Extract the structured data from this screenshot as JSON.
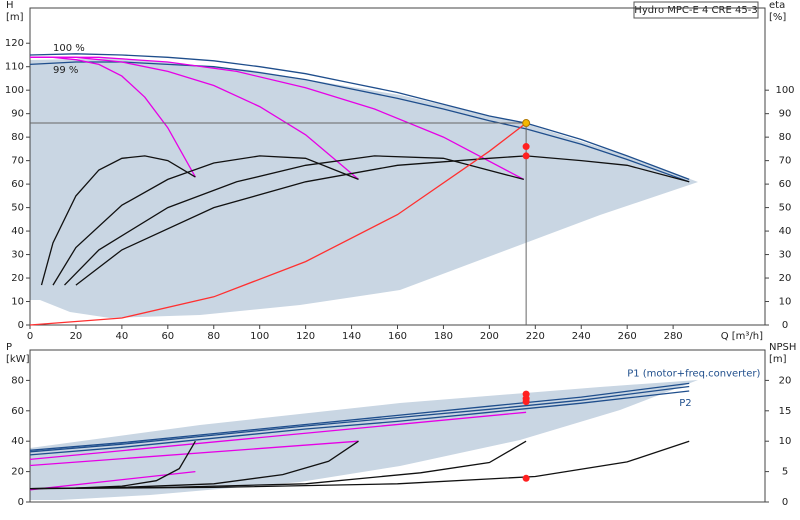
{
  "chart_data": [
    {
      "type": "line",
      "title": "Hydro MPC-E 4 CRE 45-3",
      "ylabel": [
        "H",
        "[m]"
      ],
      "y2label": [
        "eta",
        "[%]"
      ],
      "xlabel": "Q [m³/h]",
      "annotations": [
        "100 %",
        "99 %"
      ],
      "xlim": [
        0,
        320
      ],
      "xticks": [
        0,
        20,
        40,
        60,
        80,
        100,
        120,
        140,
        160,
        180,
        200,
        220,
        240,
        260,
        280
      ],
      "ylim": [
        0,
        135
      ],
      "yticks": [
        0,
        10,
        20,
        30,
        40,
        50,
        60,
        70,
        80,
        90,
        100,
        110,
        120
      ],
      "y2lim": [
        0,
        135
      ],
      "y2ticks": [
        0,
        10,
        20,
        30,
        40,
        50,
        60,
        70,
        80,
        90,
        100
      ],
      "series": [
        {
          "color": "#1f4e8c",
          "x": [
            0,
            20,
            40,
            60,
            80,
            100,
            120,
            140,
            160,
            180,
            200,
            216,
            240,
            260,
            287
          ],
          "values": [
            115,
            115.5,
            115,
            114,
            112.5,
            110,
            107,
            103,
            99,
            94,
            89,
            86,
            79,
            72,
            62
          ]
        },
        {
          "color": "#1f4e8c",
          "x": [
            0,
            20,
            40,
            60,
            80,
            100,
            120,
            140,
            160,
            180,
            200,
            216,
            240,
            260,
            287
          ],
          "values": [
            111,
            112,
            112,
            111,
            110,
            107.5,
            104.5,
            100.5,
            96.5,
            92,
            87,
            83.5,
            77,
            70.5,
            61
          ]
        },
        {
          "color": "#e600e6",
          "x": [
            0,
            10,
            20,
            30,
            40,
            50,
            60,
            72
          ],
          "values": [
            114,
            114,
            113,
            111,
            106,
            97,
            84,
            63
          ]
        },
        {
          "color": "#e600e6",
          "x": [
            0,
            20,
            40,
            60,
            80,
            100,
            120,
            143
          ],
          "values": [
            114,
            114,
            112,
            108,
            102,
            93,
            81,
            62
          ]
        },
        {
          "color": "#e600e6",
          "x": [
            0,
            30,
            60,
            90,
            120,
            150,
            180,
            215
          ],
          "values": [
            114,
            114,
            112,
            108,
            101,
            92,
            80,
            62
          ]
        },
        {
          "color": "#111111",
          "axis": "y2",
          "x": [
            5,
            10,
            20,
            30,
            40,
            50,
            60,
            72
          ],
          "values": [
            17,
            35,
            55,
            66,
            71,
            72,
            70,
            63
          ]
        },
        {
          "color": "#111111",
          "axis": "y2",
          "x": [
            10,
            20,
            40,
            60,
            80,
            100,
            120,
            143
          ],
          "values": [
            17,
            33,
            51,
            62,
            69,
            72,
            71,
            62
          ]
        },
        {
          "color": "#111111",
          "axis": "y2",
          "x": [
            15,
            30,
            60,
            90,
            120,
            150,
            180,
            215
          ],
          "values": [
            17,
            32,
            50,
            61,
            68,
            72,
            71,
            62
          ]
        },
        {
          "color": "#111111",
          "axis": "y2",
          "x": [
            20,
            40,
            80,
            120,
            160,
            200,
            216,
            240,
            260,
            287
          ],
          "values": [
            17,
            32,
            50,
            61,
            68,
            71,
            72,
            70,
            68,
            61
          ]
        },
        {
          "color": "#ff3030",
          "x": [
            0,
            40,
            80,
            120,
            160,
            200,
            216
          ],
          "values": [
            0,
            3,
            12,
            27,
            47,
            74,
            86
          ]
        },
        {
          "color": "#f5b800",
          "marker": true,
          "guide": true,
          "x": [
            216
          ],
          "values": [
            86
          ]
        },
        {
          "color": "#ff2020",
          "marker": true,
          "axis": "y2",
          "x": [
            216,
            216
          ],
          "values": [
            76,
            72
          ]
        }
      ]
    },
    {
      "type": "line",
      "ylabel": [
        "P",
        "[kW]"
      ],
      "y2label": [
        "NPSH",
        "[m]"
      ],
      "xlim": [
        0,
        320
      ],
      "ylim": [
        0,
        100
      ],
      "yticks": [
        0,
        20,
        40,
        60,
        80
      ],
      "y2lim": [
        0,
        25
      ],
      "y2ticks": [
        0,
        5,
        10,
        15,
        20
      ],
      "series": [
        {
          "name": "P1 (motor+freq.converter)",
          "color": "#1f4e8c",
          "x": [
            0,
            40,
            80,
            120,
            160,
            200,
            240,
            287
          ],
          "values": [
            34,
            39,
            45,
            51,
            57,
            63,
            69,
            78
          ]
        },
        {
          "color": "#1f4e8c",
          "x": [
            0,
            40,
            80,
            120,
            160,
            200,
            240,
            287
          ],
          "values": [
            33,
            38,
            44,
            50,
            55.5,
            61,
            67,
            76
          ]
        },
        {
          "name": "P2",
          "color": "#1f4e8c",
          "x": [
            0,
            40,
            80,
            120,
            160,
            200,
            240,
            287
          ],
          "values": [
            31,
            36,
            42,
            48,
            53,
            59,
            65,
            73
          ]
        },
        {
          "color": "#e600e6",
          "x": [
            0,
            72
          ],
          "values": [
            8,
            20
          ]
        },
        {
          "color": "#e600e6",
          "x": [
            0,
            143
          ],
          "values": [
            24,
            40
          ]
        },
        {
          "color": "#e600e6",
          "x": [
            0,
            216
          ],
          "values": [
            28,
            59
          ]
        },
        {
          "color": "#111111",
          "axis": "y2",
          "x": [
            0,
            20,
            40,
            55,
            65,
            72
          ],
          "values": [
            2.2,
            2.3,
            2.6,
            3.5,
            5.5,
            10
          ]
        },
        {
          "color": "#111111",
          "axis": "y2",
          "x": [
            0,
            40,
            80,
            110,
            130,
            143
          ],
          "values": [
            2.2,
            2.4,
            3,
            4.5,
            6.7,
            10
          ]
        },
        {
          "color": "#111111",
          "axis": "y2",
          "x": [
            0,
            60,
            120,
            170,
            200,
            216
          ],
          "values": [
            2.2,
            2.4,
            3,
            4.8,
            6.5,
            10
          ]
        },
        {
          "color": "#111111",
          "axis": "y2",
          "x": [
            0,
            80,
            160,
            220,
            260,
            287
          ],
          "values": [
            2.2,
            2.4,
            3,
            4.2,
            6.6,
            10
          ]
        },
        {
          "color": "#ff2020",
          "marker": true,
          "x": [
            216,
            216,
            216
          ],
          "values": [
            71,
            68,
            66
          ]
        },
        {
          "color": "#ff2020",
          "marker": true,
          "axis": "y2",
          "x": [
            216
          ],
          "values": [
            3.9
          ]
        }
      ]
    }
  ]
}
